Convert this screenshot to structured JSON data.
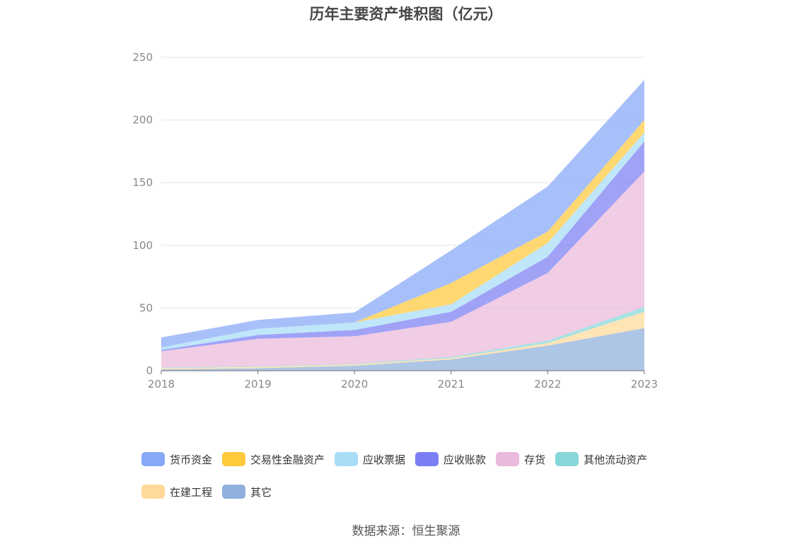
{
  "chart_data": {
    "type": "area",
    "stacked": true,
    "title": "历年主要资产堆积图（亿元）",
    "xlabel": "",
    "ylabel": "",
    "x": [
      "2018",
      "2019",
      "2020",
      "2021",
      "2022",
      "2023"
    ],
    "ylim": [
      0,
      250
    ],
    "yticks": [
      0,
      50,
      100,
      150,
      200,
      250
    ],
    "grid": true,
    "legend_position": "bottom",
    "series": [
      {
        "name": "其它",
        "color": "#8fb0dc",
        "values": [
          1,
          2,
          4,
          9,
          20,
          34
        ]
      },
      {
        "name": "在建工程",
        "color": "#ffd99a",
        "values": [
          1,
          1,
          1,
          1,
          2,
          13
        ]
      },
      {
        "name": "其他流动资产",
        "color": "#86d7d9",
        "values": [
          0.5,
          0.5,
          0.5,
          1,
          2,
          4
        ]
      },
      {
        "name": "存货",
        "color": "#eab9db",
        "values": [
          13,
          22,
          22,
          28,
          54,
          108
        ]
      },
      {
        "name": "应收账款",
        "color": "#7b7ef3",
        "values": [
          1,
          3,
          5,
          8,
          13,
          24
        ]
      },
      {
        "name": "应收票据",
        "color": "#a8dcf7",
        "values": [
          2,
          5,
          6,
          6,
          11,
          7
        ]
      },
      {
        "name": "交易性金融资产",
        "color": "#ffc93c",
        "values": [
          0,
          0,
          0,
          17,
          9,
          10
        ]
      },
      {
        "name": "货币资金",
        "color": "#86a8f7",
        "values": [
          8,
          7,
          8,
          26,
          36,
          32
        ]
      }
    ]
  },
  "legend_order": [
    "货币资金",
    "交易性金融资产",
    "应收票据",
    "应收账款",
    "存货",
    "其他流动资产",
    "在建工程",
    "其它"
  ],
  "source": "数据来源：恒生聚源"
}
